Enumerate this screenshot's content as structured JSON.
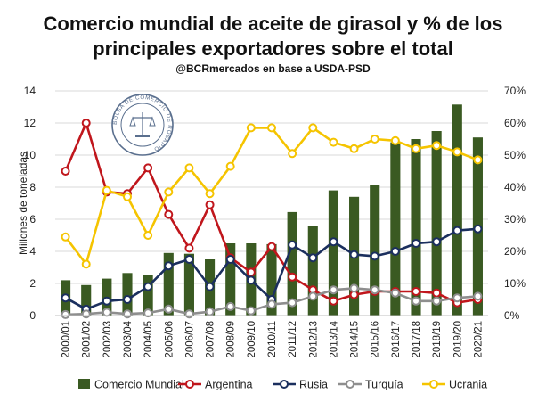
{
  "chart_data": {
    "type": "bar",
    "title_line1": "Comercio mundial de aceite de girasol y % de los",
    "title_line2": "principales exportadores sobre el total",
    "subtitle": "@BCRmercados en base a USDA-PSD",
    "ylabel": "Millones de toneladas",
    "ylim": [
      0,
      14
    ],
    "y_ticks": [
      "0",
      "2",
      "4",
      "6",
      "8",
      "10",
      "12",
      "14"
    ],
    "y2lim": [
      0,
      0.7
    ],
    "y2_ticks": [
      "0%",
      "10%",
      "20%",
      "30%",
      "40%",
      "50%",
      "60%",
      "70%"
    ],
    "categories": [
      "2000/01",
      "2001/02",
      "2002/03",
      "2003/04",
      "2004/05",
      "2005/06",
      "2006/07",
      "2007/08",
      "2008/09",
      "2009/10",
      "2010/11",
      "2011/12",
      "2012/13",
      "2013/14",
      "2014/15",
      "2015/16",
      "2016/17",
      "2017/18",
      "2018/19",
      "2019/20",
      "2020/21"
    ],
    "grid": true,
    "legend_position": "bottom",
    "seal_text": "BOLSA DE COMERCIO DE ROSARIO",
    "series": [
      {
        "name": "Comercio Mundial",
        "type": "bar",
        "axis": "left",
        "color": "#3a5a22",
        "values": [
          2.2,
          1.9,
          2.3,
          2.65,
          2.55,
          3.9,
          3.85,
          3.5,
          4.5,
          4.5,
          4.45,
          6.45,
          5.6,
          7.8,
          7.4,
          8.15,
          10.8,
          11.0,
          11.5,
          13.15,
          11.1
        ]
      },
      {
        "name": "Argentina",
        "type": "line",
        "axis": "right",
        "color": "#c0161c",
        "values": [
          0.45,
          0.6,
          0.385,
          0.38,
          0.46,
          0.315,
          0.21,
          0.345,
          0.18,
          0.135,
          0.215,
          0.12,
          0.08,
          0.045,
          0.065,
          0.075,
          0.075,
          0.075,
          0.07,
          0.04,
          0.05
        ]
      },
      {
        "name": "Rusia",
        "type": "line",
        "axis": "right",
        "color": "#1b2f5e",
        "values": [
          0.055,
          0.02,
          0.045,
          0.05,
          0.09,
          0.155,
          0.175,
          0.09,
          0.175,
          0.11,
          0.05,
          0.22,
          0.18,
          0.23,
          0.19,
          0.185,
          0.2,
          0.225,
          0.23,
          0.265,
          0.27
        ]
      },
      {
        "name": "Turquía",
        "type": "line",
        "axis": "right",
        "color": "#8e8e8e",
        "values": [
          0.003,
          0.005,
          0.01,
          0.005,
          0.008,
          0.02,
          0.005,
          0.012,
          0.028,
          0.015,
          0.035,
          0.04,
          0.06,
          0.08,
          0.085,
          0.08,
          0.07,
          0.045,
          0.045,
          0.055,
          0.06
        ]
      },
      {
        "name": "Ucrania",
        "type": "line",
        "axis": "right",
        "color": "#f5c400",
        "values": [
          0.245,
          0.16,
          0.39,
          0.37,
          0.25,
          0.385,
          0.46,
          0.38,
          0.465,
          0.585,
          0.585,
          0.505,
          0.585,
          0.54,
          0.52,
          0.55,
          0.545,
          0.52,
          0.53,
          0.51,
          0.485
        ]
      }
    ]
  }
}
